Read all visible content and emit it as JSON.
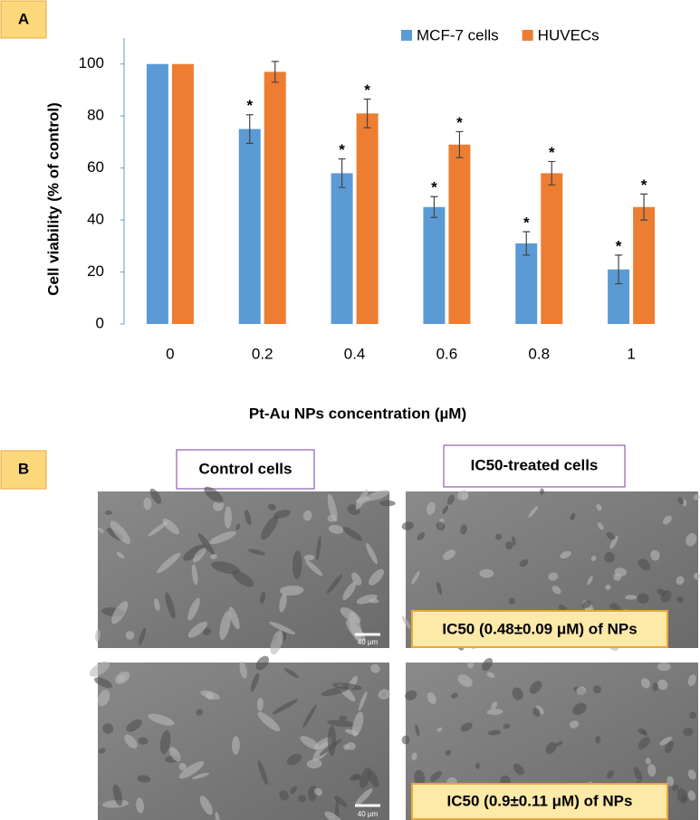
{
  "chart_data": {
    "type": "bar",
    "panel_label": "A",
    "y_label": "Cell viability (% of control)",
    "x_label": "Pt-Au NPs concentration (µM)",
    "categories": [
      "0",
      "0.2",
      "0.4",
      "0.6",
      "0.8",
      "1"
    ],
    "series": [
      {
        "name": "MCF-7 cells",
        "color": "#5b9bd5",
        "values": [
          100,
          75,
          58,
          45,
          31,
          21
        ],
        "errors": [
          0,
          5.5,
          5.5,
          4,
          4.5,
          5.5
        ],
        "significance": [
          null,
          "*",
          "*",
          "*",
          "*",
          "*"
        ]
      },
      {
        "name": "HUVECs",
        "color": "#ed7d31",
        "values": [
          100,
          97,
          81,
          69,
          58,
          45
        ],
        "errors": [
          0,
          4,
          5.5,
          5,
          4.5,
          5
        ],
        "significance": [
          null,
          null,
          "*",
          "*",
          "*",
          "*"
        ]
      }
    ],
    "ylim": [
      0,
      110
    ],
    "yticks": [
      0,
      20,
      40,
      60,
      80,
      100
    ],
    "grid": false,
    "legend": "top-right"
  },
  "panel_b": {
    "label": "B",
    "control_title": "Control cells",
    "treated_title": "IC50-treated cells",
    "caption_top": "IC50 (0.48±0.09 μM) of NPs",
    "caption_bottom": "IC50 (0.9±0.11 μM) of NPs",
    "scale_bar_top": "40 μm",
    "scale_bar_bottom": "40 μm"
  }
}
